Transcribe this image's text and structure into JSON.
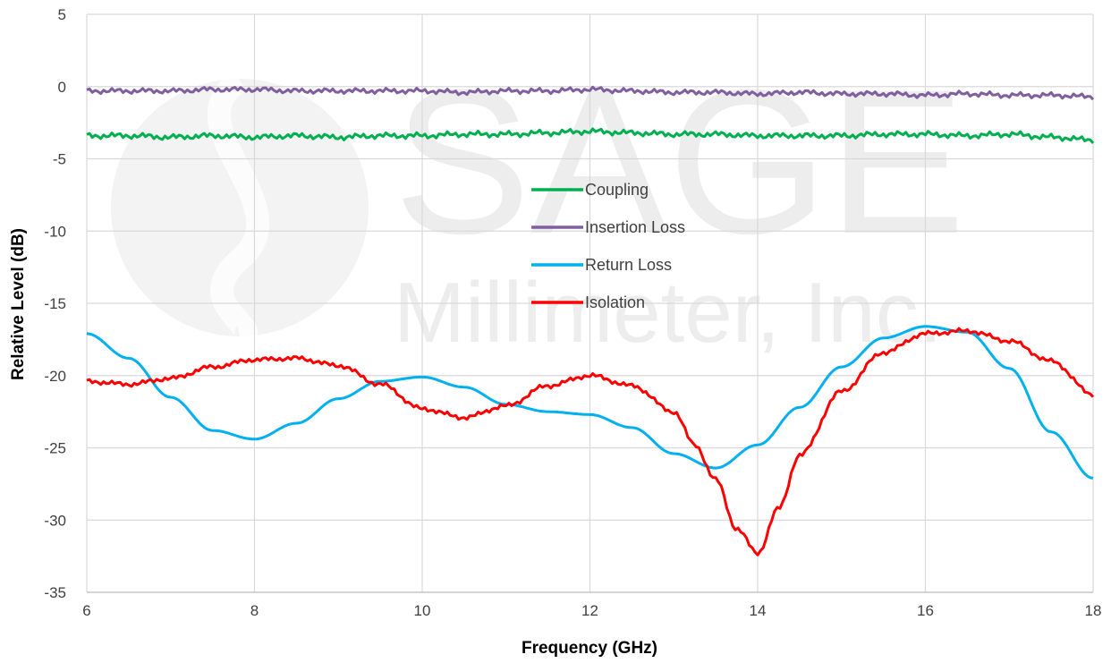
{
  "chart_data": {
    "type": "line",
    "xlabel": "Frequency (GHz)",
    "ylabel": "Relative Level (dB)",
    "xlim": [
      6,
      18
    ],
    "ylim": [
      -35,
      5
    ],
    "x_ticks": [
      "6",
      "8",
      "10",
      "12",
      "14",
      "16",
      "18"
    ],
    "y_ticks": [
      "5",
      "0",
      "-5",
      "-10",
      "-15",
      "-20",
      "-25",
      "-30",
      "-35"
    ],
    "grid": true,
    "legend_position": "center",
    "watermark": {
      "line1": "SAGE",
      "line2": "Millimeter, Inc."
    },
    "series": [
      {
        "name": "Coupling",
        "color": "#00b050",
        "x": [
          6,
          6.5,
          7,
          7.5,
          8,
          8.5,
          9,
          9.5,
          10,
          10.5,
          11,
          11.5,
          12,
          12.5,
          13,
          13.5,
          14,
          14.5,
          15,
          15.5,
          16,
          16.5,
          17,
          17.5,
          18
        ],
        "y": [
          -3.4,
          -3.4,
          -3.5,
          -3.4,
          -3.5,
          -3.4,
          -3.5,
          -3.4,
          -3.4,
          -3.3,
          -3.3,
          -3.2,
          -3.1,
          -3.2,
          -3.3,
          -3.3,
          -3.4,
          -3.4,
          -3.4,
          -3.3,
          -3.3,
          -3.4,
          -3.3,
          -3.5,
          -3.7
        ]
      },
      {
        "name": "Insertion Loss",
        "color": "#7f5f9f",
        "x": [
          6,
          6.5,
          7,
          7.5,
          8,
          8.5,
          9,
          9.5,
          10,
          10.5,
          11,
          11.5,
          12,
          12.5,
          13,
          13.5,
          14,
          14.5,
          15,
          15.5,
          16,
          16.5,
          17,
          17.5,
          18
        ],
        "y": [
          -0.3,
          -0.3,
          -0.3,
          -0.2,
          -0.2,
          -0.3,
          -0.3,
          -0.3,
          -0.3,
          -0.4,
          -0.3,
          -0.3,
          -0.2,
          -0.3,
          -0.4,
          -0.4,
          -0.5,
          -0.4,
          -0.5,
          -0.5,
          -0.6,
          -0.5,
          -0.6,
          -0.6,
          -0.7
        ]
      },
      {
        "name": "Return Loss",
        "color": "#00b0f0",
        "x": [
          6,
          6.5,
          7,
          7.5,
          8,
          8.5,
          9,
          9.5,
          10,
          10.5,
          11,
          11.5,
          12,
          12.5,
          13,
          13.5,
          14,
          14.5,
          15,
          15.5,
          16,
          16.5,
          17,
          17.5,
          18
        ],
        "y": [
          -17.1,
          -18.8,
          -21.5,
          -23.8,
          -24.4,
          -23.3,
          -21.6,
          -20.4,
          -20.1,
          -20.8,
          -22.0,
          -22.5,
          -22.7,
          -23.6,
          -25.4,
          -26.4,
          -24.8,
          -22.2,
          -19.4,
          -17.4,
          -16.6,
          -17.0,
          -19.5,
          -23.9,
          -27.1
        ]
      },
      {
        "name": "Isolation",
        "color": "#ff0000",
        "x": [
          6,
          6.5,
          7,
          7.5,
          8,
          8.5,
          9,
          9.5,
          10,
          10.5,
          11,
          11.5,
          12,
          12.5,
          13,
          13.25,
          13.5,
          13.75,
          14,
          14.25,
          14.5,
          15,
          15.5,
          16,
          16.5,
          17,
          17.5,
          18
        ],
        "y": [
          -20.4,
          -20.6,
          -20.2,
          -19.4,
          -18.9,
          -18.8,
          -19.3,
          -20.6,
          -22.3,
          -22.9,
          -22.1,
          -20.7,
          -20.0,
          -20.7,
          -22.5,
          -24.8,
          -27.2,
          -30.6,
          -32.3,
          -29.2,
          -25.5,
          -21.1,
          -18.4,
          -17.1,
          -16.9,
          -17.6,
          -19.0,
          -21.3
        ]
      }
    ]
  }
}
